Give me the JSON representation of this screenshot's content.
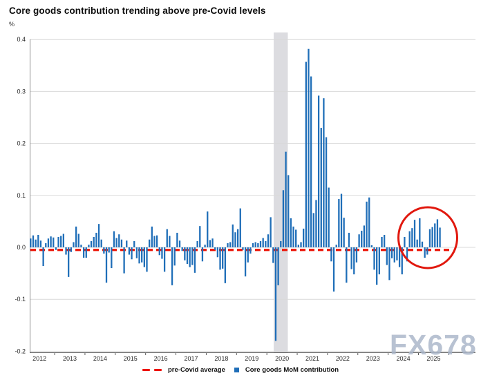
{
  "header": {
    "title": "Core goods contribution trending above pre-Covid levels",
    "unit_label": "%"
  },
  "legend": {
    "pre_covid": {
      "label": "pre-Covid average",
      "color": "#ec1407"
    },
    "core_goods": {
      "label": "Core goods MoM contribution",
      "color": "#1f6eb8"
    }
  },
  "watermark": {
    "text": "FX678",
    "color": "#a8b4c8"
  },
  "chart_data": {
    "type": "bar",
    "title": "Core goods contribution trending above pre-Covid levels",
    "ylabel": "%",
    "grid": true,
    "legend_position": "bottom-center",
    "y_axis": {
      "unit": "%",
      "min": -0.2,
      "max": 0.4,
      "ticks": [
        0.4,
        0.3,
        0.2,
        0.1,
        0.0,
        -0.1,
        -0.2
      ]
    },
    "x_axis": {
      "years": [
        "2012",
        "2013",
        "2014",
        "2015",
        "2016",
        "2017",
        "2018",
        "2019",
        "2020",
        "2021",
        "2022",
        "2023",
        "2024",
        "2025"
      ]
    },
    "pre_covid_average": {
      "label": "pre-Covid average",
      "value": -0.005,
      "color": "#ec1407",
      "style": "dashed"
    },
    "annotations": {
      "recession_band": {
        "from": "2020-04",
        "to": "2020-08",
        "color": "#dcdce0"
      },
      "highlight_circle": {
        "around": "2024-09 to 2025-09",
        "color": "#e1180e",
        "shape": "ellipse"
      }
    },
    "series": [
      {
        "name": "Core goods MoM contribution",
        "color": "#1f6eb8",
        "start_month": "2012-03",
        "end_month": "2025-09",
        "monthly_values": [
          0.017,
          0.023,
          0.015,
          0.024,
          0.013,
          -0.036,
          0.008,
          0.017,
          0.021,
          0.019,
          -0.005,
          0.02,
          0.022,
          0.026,
          -0.014,
          -0.057,
          -0.009,
          0.01,
          0.04,
          0.026,
          0.005,
          -0.02,
          -0.02,
          0.005,
          0.012,
          0.02,
          0.028,
          0.045,
          0.015,
          -0.012,
          -0.068,
          -0.01,
          -0.04,
          0.031,
          0.018,
          0.025,
          0.015,
          -0.05,
          0.013,
          -0.014,
          -0.023,
          0.012,
          -0.021,
          -0.031,
          -0.029,
          -0.038,
          -0.047,
          0.015,
          0.04,
          0.022,
          0.023,
          -0.015,
          -0.022,
          -0.047,
          0.035,
          0.022,
          -0.073,
          -0.035,
          0.028,
          0.013,
          -0.007,
          -0.025,
          -0.032,
          -0.038,
          -0.034,
          -0.049,
          0.012,
          0.041,
          -0.027,
          0.005,
          0.069,
          0.014,
          0.017,
          -0.005,
          -0.019,
          -0.043,
          -0.041,
          -0.069,
          0.008,
          0.01,
          0.044,
          0.029,
          0.035,
          0.075,
          -0.005,
          -0.056,
          -0.029,
          -0.012,
          0.008,
          0.01,
          0.008,
          0.012,
          0.018,
          0.012,
          0.025,
          0.058,
          -0.03,
          -0.18,
          -0.073,
          0.012,
          0.11,
          0.184,
          0.139,
          0.056,
          0.04,
          0.034,
          0.005,
          0.01,
          0.036,
          0.357,
          0.382,
          0.329,
          0.066,
          0.091,
          0.292,
          0.23,
          0.287,
          0.212,
          0.115,
          -0.027,
          -0.085,
          0.005,
          0.093,
          0.103,
          0.057,
          -0.068,
          0.028,
          -0.042,
          -0.052,
          -0.029,
          0.025,
          0.032,
          0.042,
          0.088,
          0.096,
          0.004,
          -0.043,
          -0.072,
          -0.052,
          0.02,
          0.024,
          -0.034,
          -0.063,
          -0.021,
          -0.029,
          -0.025,
          -0.038,
          -0.052,
          0.02,
          -0.027,
          0.031,
          0.037,
          0.053,
          0.015,
          0.056,
          0.011,
          -0.02,
          -0.014,
          0.035,
          0.039,
          0.046,
          0.054,
          0.038
        ]
      }
    ]
  }
}
